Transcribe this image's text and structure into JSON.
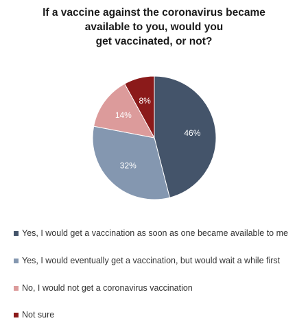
{
  "chart_data": {
    "type": "pie",
    "title_lines": [
      "If a vaccine against the coronavirus became",
      "available to you, would you",
      "get vaccinated, or not?"
    ],
    "slices": [
      {
        "label": "Yes, I would get a vaccination as soon as one became available to me",
        "value": 46,
        "display": "46%",
        "color": "#44546a"
      },
      {
        "label": "Yes, I would eventually get a vaccination, but would wait a while first",
        "value": 32,
        "display": "32%",
        "color": "#8497b0"
      },
      {
        "label": "No, I would not get a coronavirus vaccination",
        "value": 14,
        "display": "14%",
        "color": "#dc9b9b"
      },
      {
        "label": "Not sure",
        "value": 8,
        "display": "8%",
        "color": "#8b1a1a"
      }
    ],
    "legend_position": "bottom"
  }
}
